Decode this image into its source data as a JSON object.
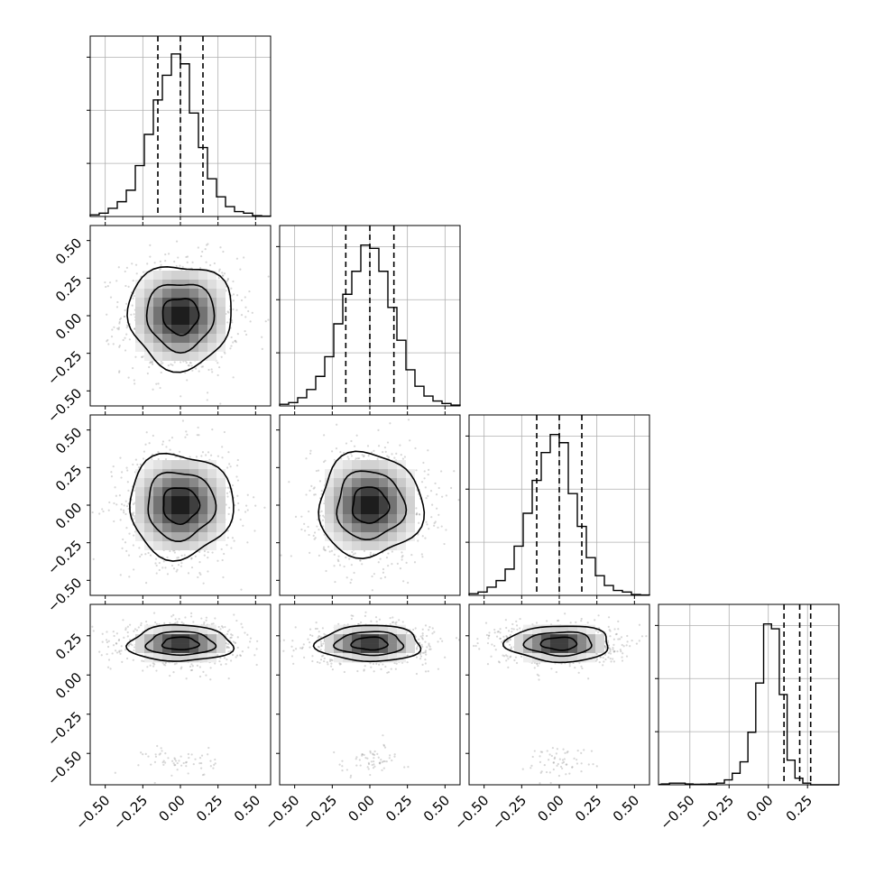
{
  "chart_data": {
    "type": "corner",
    "parameters": 4,
    "tick_values": [
      -0.5,
      -0.25,
      0.0,
      0.25,
      0.5
    ],
    "tick_labels": [
      "−0.50",
      "−0.25",
      "0.00",
      "0.25",
      "0.50"
    ],
    "axis_ranges": [
      [
        -0.6,
        0.6
      ],
      [
        -0.6,
        0.6
      ],
      [
        -0.6,
        0.6
      ],
      [
        -0.7,
        0.45
      ]
    ],
    "diagonal_ticks": [
      [
        -0.5,
        -0.25,
        0.0,
        0.25,
        0.5
      ],
      [
        -0.5,
        -0.25,
        0.0,
        0.25,
        0.5
      ],
      [
        -0.5,
        -0.25,
        0.0,
        0.25,
        0.5
      ],
      [
        -0.5,
        -0.25,
        0.0,
        0.25
      ]
    ],
    "grid": true,
    "histograms": [
      {
        "bin_width": 0.06,
        "counts": [
          0.01,
          0.02,
          0.05,
          0.09,
          0.16,
          0.31,
          0.5,
          0.71,
          0.86,
          0.99,
          0.93,
          0.63,
          0.42,
          0.23,
          0.12,
          0.06,
          0.03,
          0.02,
          0.005,
          0.002
        ],
        "quantiles": [
          -0.15,
          0.0,
          0.15
        ]
      },
      {
        "bin_width": 0.06,
        "counts": [
          0.01,
          0.02,
          0.05,
          0.1,
          0.18,
          0.3,
          0.5,
          0.68,
          0.82,
          0.98,
          0.96,
          0.82,
          0.6,
          0.4,
          0.22,
          0.12,
          0.06,
          0.03,
          0.015,
          0.005
        ],
        "quantiles": [
          -0.16,
          0.0,
          0.16
        ]
      },
      {
        "bin_width": 0.06,
        "counts": [
          0.01,
          0.02,
          0.05,
          0.09,
          0.16,
          0.3,
          0.5,
          0.7,
          0.87,
          0.98,
          0.93,
          0.62,
          0.42,
          0.23,
          0.12,
          0.06,
          0.03,
          0.02,
          0.005,
          0.002
        ],
        "quantiles": [
          -0.15,
          0.0,
          0.15
        ]
      },
      {
        "bin_width": 0.05,
        "counts": [
          0.005,
          0.01,
          0.01,
          0.005,
          0.003,
          0.004,
          0.005,
          0.01,
          0.03,
          0.07,
          0.14,
          0.32,
          0.62,
          0.98,
          0.95,
          0.55,
          0.15,
          0.04,
          0.01,
          0.0,
          0.0,
          0.0,
          0.0
        ],
        "quantiles": [
          0.1,
          0.2,
          0.27
        ]
      }
    ],
    "joint_panels": [
      {
        "row": 1,
        "col": 0,
        "center": [
          0.0,
          0.0
        ],
        "sigma": [
          0.15,
          0.15
        ]
      },
      {
        "row": 2,
        "col": 0,
        "center": [
          0.0,
          0.0
        ],
        "sigma": [
          0.15,
          0.15
        ]
      },
      {
        "row": 2,
        "col": 1,
        "center": [
          0.0,
          0.0
        ],
        "sigma": [
          0.15,
          0.15
        ]
      },
      {
        "row": 3,
        "col": 0,
        "center": [
          0.0,
          0.2
        ],
        "sigma": [
          0.15,
          0.05
        ]
      },
      {
        "row": 3,
        "col": 1,
        "center": [
          0.0,
          0.2
        ],
        "sigma": [
          0.15,
          0.05
        ]
      },
      {
        "row": 3,
        "col": 2,
        "center": [
          0.0,
          0.2
        ],
        "sigma": [
          0.15,
          0.05
        ]
      }
    ]
  }
}
